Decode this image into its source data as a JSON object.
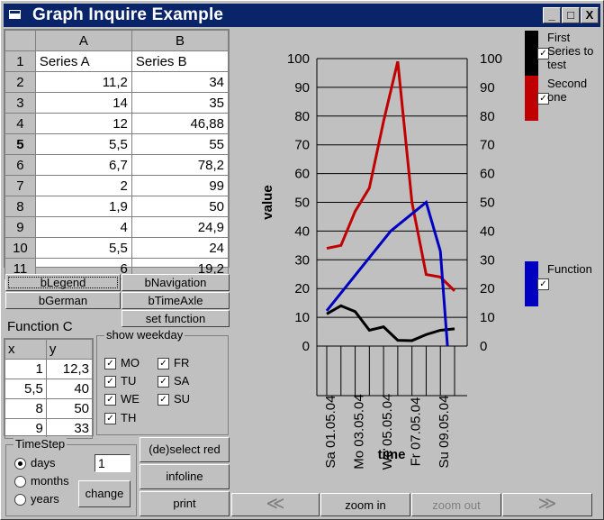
{
  "window": {
    "title": "Graph Inquire Example",
    "minimize": "_",
    "maximize": "□",
    "close": "X"
  },
  "grid": {
    "col_headers": [
      "",
      "A",
      "B"
    ],
    "rows": [
      [
        "1",
        "Series A",
        "Series B"
      ],
      [
        "2",
        "11,2",
        "34"
      ],
      [
        "3",
        "14",
        "35"
      ],
      [
        "4",
        "12",
        "46,88"
      ],
      [
        "5",
        "5,5",
        "55"
      ],
      [
        "6",
        "6,7",
        "78,2"
      ],
      [
        "7",
        "2",
        "99"
      ],
      [
        "8",
        "1,9",
        "50"
      ],
      [
        "9",
        "4",
        "24,9"
      ],
      [
        "10",
        "5,5",
        "24"
      ],
      [
        "11",
        "6",
        "19,2"
      ]
    ]
  },
  "buttons": {
    "legend": "bLegend",
    "navigation": "bNavigation",
    "german": "bGerman",
    "timeaxle": "bTimeAxle",
    "setfunction": "set function",
    "deselect": "(de)select red",
    "infoline": "infoline",
    "print": "print",
    "change": "change",
    "prev": "≪",
    "zoomin": "zoom in",
    "zoomout": "zoom out",
    "next": "≫"
  },
  "function": {
    "label": "Function C",
    "headers": [
      "x",
      "y"
    ],
    "rows": [
      [
        "1",
        "12,3"
      ],
      [
        "5,5",
        "40"
      ],
      [
        "8",
        "50"
      ],
      [
        "9",
        "33"
      ]
    ]
  },
  "weekday": {
    "title": "show weekday",
    "items": [
      {
        "label": "MO",
        "checked": "✓"
      },
      {
        "label": "FR",
        "checked": "✓"
      },
      {
        "label": "TU",
        "checked": "✓"
      },
      {
        "label": "SA",
        "checked": "✓"
      },
      {
        "label": "WE",
        "checked": "✓"
      },
      {
        "label": "SU",
        "checked": "✓"
      },
      {
        "label": "TH",
        "checked": "✓"
      }
    ]
  },
  "timestep": {
    "title": "TimeStep",
    "options": [
      "days",
      "months",
      "years"
    ],
    "selected": "days",
    "value": "1"
  },
  "legend": {
    "series1": "First Series to test",
    "series2": "Second one",
    "function": "Function",
    "check": "✓",
    "colors": {
      "series1": "#000000",
      "series2": "#c00000",
      "function": "#0000c0"
    }
  },
  "chart_data": {
    "type": "line",
    "ylabel": "value",
    "xlabel": "time",
    "ylim": [
      0,
      100
    ],
    "yticks": [
      "0",
      "10",
      "20",
      "30",
      "40",
      "50",
      "60",
      "70",
      "80",
      "90",
      "100"
    ],
    "xticks": [
      "Sa 01.05.04",
      "Mo 03.05.04",
      "We 05.05.04",
      "Fr 07.05.04",
      "Su 09.05.04"
    ],
    "x": [
      1,
      2,
      3,
      4,
      5,
      6,
      7,
      8,
      9,
      10
    ],
    "series": [
      {
        "name": "First Series to test",
        "color": "#000000",
        "values": [
          11.2,
          14,
          12,
          5.5,
          6.7,
          2,
          1.9,
          4,
          5.5,
          6
        ]
      },
      {
        "name": "Second one",
        "color": "#c00000",
        "values": [
          34,
          35,
          46.88,
          55,
          78.2,
          99,
          50,
          24.9,
          24,
          19.2
        ]
      },
      {
        "name": "Function",
        "color": "#0000c0",
        "xy": [
          [
            1,
            12.3
          ],
          [
            5.5,
            40
          ],
          [
            8,
            50
          ],
          [
            9,
            33
          ],
          [
            9.5,
            0
          ]
        ]
      }
    ],
    "grid": true,
    "legend": "right"
  }
}
